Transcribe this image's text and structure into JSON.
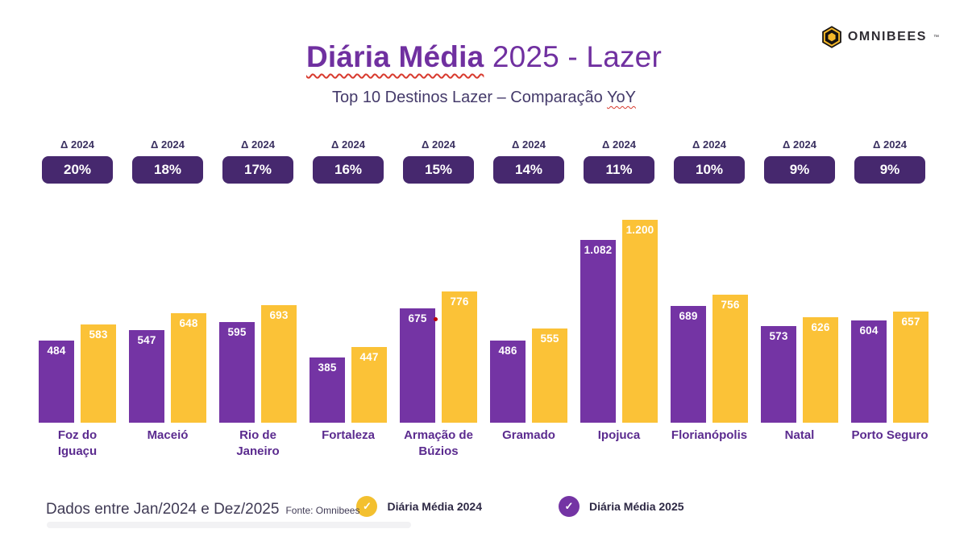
{
  "logo": {
    "brand": "OMNIBEES",
    "tm": "™",
    "icon": "hexagon-bee-icon"
  },
  "header": {
    "title_emphasis": "Diária Média",
    "title_rest": " 2025 - Lazer",
    "subtitle_prefix": "Top 10 Destinos Lazer – Comparação ",
    "subtitle_underlined": "YoY",
    "title_color": "#7030a0"
  },
  "deltas": {
    "label": "Δ 2024",
    "values": [
      "20%",
      "18%",
      "17%",
      "16%",
      "15%",
      "14%",
      "11%",
      "10%",
      "9%",
      "9%"
    ],
    "badge_color": "#46286e"
  },
  "chart_data": {
    "type": "bar",
    "title": "Diária Média 2025 - Lazer",
    "subtitle": "Top 10 Destinos Lazer – Comparação YoY",
    "categories": [
      "Foz do Iguaçu",
      "Maceió",
      "Rio de Janeiro",
      "Fortaleza",
      "Armação de Búzios",
      "Gramado",
      "Ipojuca",
      "Florianópolis",
      "Natal",
      "Porto Seguro"
    ],
    "series": [
      {
        "name": "Diária Média 2024",
        "legend_color": "#f3c02f",
        "bar_color": "#7434a4",
        "bar_position": "left",
        "values": [
          484,
          547,
          595,
          385,
          675,
          486,
          1082,
          689,
          573,
          604
        ],
        "labels": [
          "484",
          "547",
          "595",
          "385",
          "675",
          "486",
          "1.082",
          "689",
          "573",
          "604"
        ]
      },
      {
        "name": "Diária Média 2025",
        "legend_color": "#7434a4",
        "bar_color": "#fbc237",
        "bar_position": "right",
        "values": [
          583,
          648,
          693,
          447,
          776,
          555,
          1200,
          756,
          626,
          657
        ],
        "labels": [
          "583",
          "648",
          "693",
          "447",
          "776",
          "555",
          "1.200",
          "756",
          "626",
          "657"
        ]
      }
    ],
    "delta_vs_2024": [
      "20%",
      "18%",
      "17%",
      "16%",
      "15%",
      "14%",
      "11%",
      "10%",
      "9%",
      "9%"
    ],
    "ylim": [
      0,
      1260
    ],
    "value_labels": "inside-top",
    "grid": "off",
    "legend_position": "bottom"
  },
  "legend": [
    {
      "label": "Diária Média 2024",
      "color": "#f3c02f",
      "icon": "check-icon"
    },
    {
      "label": "Diária Média 2025",
      "color": "#7434a4",
      "icon": "check-icon"
    }
  ],
  "legend_check_glyph": "✓",
  "footer": {
    "text": "Dados entre Jan/2024 e Dez/2025",
    "source": "Fonte: Omnibees"
  }
}
